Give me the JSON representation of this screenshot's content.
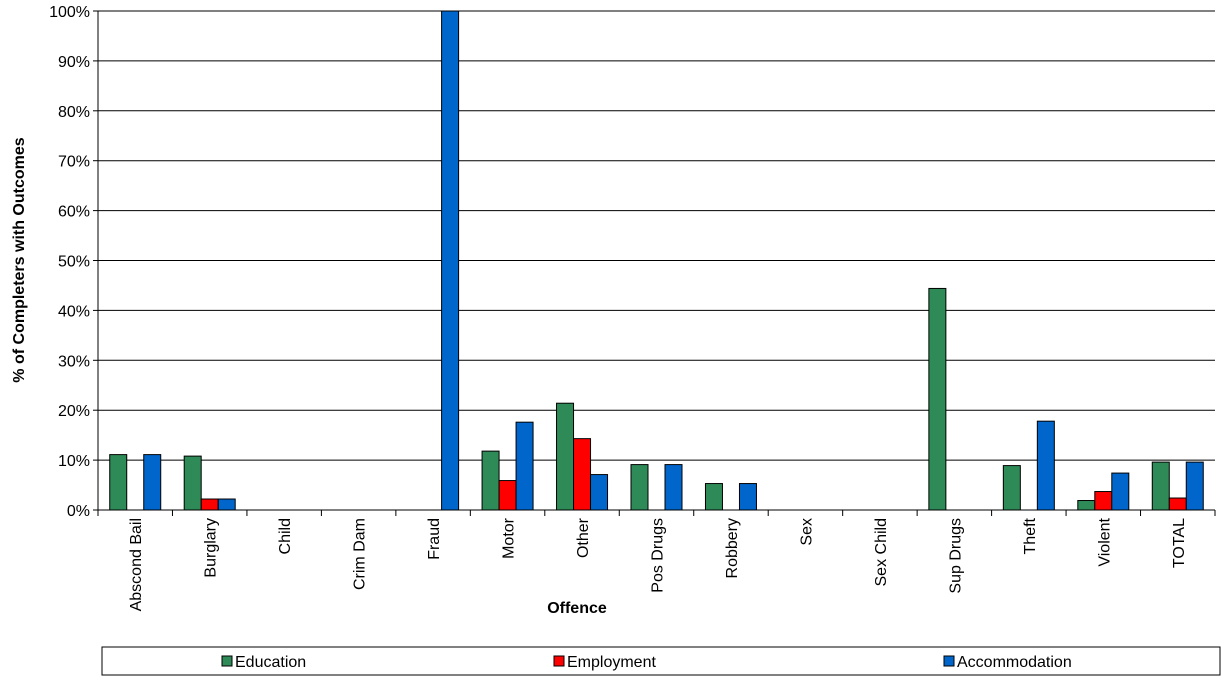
{
  "chart_data": {
    "type": "bar",
    "title": "",
    "xlabel": "Offence",
    "ylabel": "% of Completers with Outcomes",
    "ylim": [
      0,
      100
    ],
    "y_ticks": [
      "0%",
      "10%",
      "20%",
      "30%",
      "40%",
      "50%",
      "60%",
      "70%",
      "80%",
      "90%",
      "100%"
    ],
    "grid": "horizontal",
    "legend_position": "bottom",
    "categories": [
      "Abscond Bail",
      "Burglary",
      "Child",
      "Crim Dam",
      "Fraud",
      "Motor",
      "Other",
      "Pos Drugs",
      "Robbery",
      "Sex",
      "Sex Child",
      "Sup Drugs",
      "Theft",
      "Violent",
      "TOTAL"
    ],
    "series": [
      {
        "name": "Education",
        "color": "#2e8b57",
        "values": [
          11.1,
          10.8,
          0,
          0,
          0,
          11.8,
          21.4,
          9.1,
          5.3,
          0,
          0,
          44.4,
          8.9,
          1.9,
          9.6
        ]
      },
      {
        "name": "Employment",
        "color": "#ff0000",
        "values": [
          0,
          2.2,
          0,
          0,
          0,
          5.9,
          14.3,
          0,
          0,
          0,
          0,
          0,
          0,
          3.7,
          2.4
        ]
      },
      {
        "name": "Accommodation",
        "color": "#0066cc",
        "values": [
          11.1,
          2.2,
          0,
          0,
          100,
          17.6,
          7.1,
          9.1,
          5.3,
          0,
          0,
          0,
          17.8,
          7.4,
          9.6
        ]
      }
    ]
  }
}
